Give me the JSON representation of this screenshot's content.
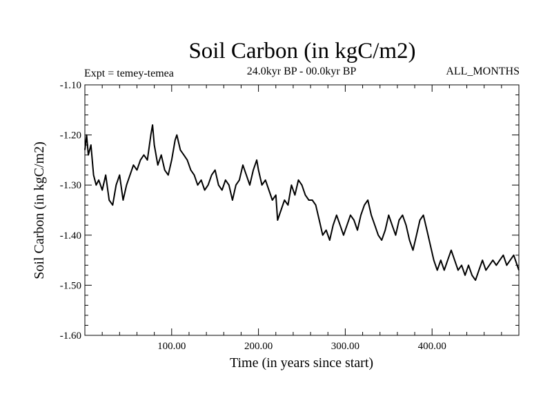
{
  "chart_data": {
    "type": "line",
    "title": "Soil Carbon (in kgC/m2)",
    "subtitle": "24.0kyr BP - 00.0kyr BP",
    "experiment": "Expt = temey-temea",
    "months": "ALL_MONTHS",
    "xlabel": "Time (in years since start)",
    "ylabel": "Soil Carbon (in kgC/m2)",
    "xlim": [
      0,
      500
    ],
    "ylim": [
      -1.6,
      -1.1
    ],
    "x_ticks": [
      {
        "value": 100,
        "label": "100.00"
      },
      {
        "value": 200,
        "label": "200.00"
      },
      {
        "value": 300,
        "label": "300.00"
      },
      {
        "value": 400,
        "label": "400.00"
      }
    ],
    "y_ticks": [
      {
        "value": -1.1,
        "label": "-1.10"
      },
      {
        "value": -1.2,
        "label": "-1.20"
      },
      {
        "value": -1.3,
        "label": "-1.30"
      },
      {
        "value": -1.4,
        "label": "-1.40"
      },
      {
        "value": -1.5,
        "label": "-1.50"
      },
      {
        "value": -1.6,
        "label": "-1.60"
      }
    ],
    "series": [
      {
        "name": "Soil Carbon",
        "color": "#000000",
        "x": [
          0,
          2,
          4,
          7,
          10,
          13,
          16,
          20,
          24,
          28,
          32,
          36,
          40,
          44,
          48,
          52,
          56,
          60,
          64,
          68,
          72,
          76,
          78,
          80,
          84,
          88,
          92,
          96,
          100,
          104,
          106,
          110,
          114,
          118,
          122,
          126,
          130,
          134,
          138,
          142,
          146,
          150,
          154,
          158,
          162,
          166,
          170,
          174,
          178,
          182,
          186,
          190,
          194,
          198,
          200,
          204,
          208,
          212,
          216,
          220,
          222,
          226,
          230,
          234,
          238,
          242,
          246,
          250,
          254,
          258,
          262,
          266,
          270,
          274,
          278,
          282,
          286,
          290,
          294,
          298,
          302,
          306,
          310,
          314,
          318,
          322,
          326,
          330,
          334,
          338,
          342,
          346,
          350,
          354,
          358,
          362,
          366,
          370,
          374,
          378,
          382,
          386,
          390,
          394,
          398,
          402,
          406,
          410,
          414,
          418,
          422,
          426,
          430,
          434,
          438,
          442,
          446,
          450,
          454,
          458,
          462,
          466,
          470,
          474,
          478,
          482,
          486,
          490,
          494,
          498,
          500
        ],
        "y": [
          -1.23,
          -1.2,
          -1.24,
          -1.22,
          -1.28,
          -1.3,
          -1.29,
          -1.31,
          -1.28,
          -1.33,
          -1.34,
          -1.3,
          -1.28,
          -1.33,
          -1.3,
          -1.28,
          -1.26,
          -1.27,
          -1.25,
          -1.24,
          -1.25,
          -1.2,
          -1.18,
          -1.22,
          -1.26,
          -1.24,
          -1.27,
          -1.28,
          -1.25,
          -1.21,
          -1.2,
          -1.23,
          -1.24,
          -1.25,
          -1.27,
          -1.28,
          -1.3,
          -1.29,
          -1.31,
          -1.3,
          -1.28,
          -1.27,
          -1.3,
          -1.31,
          -1.29,
          -1.3,
          -1.33,
          -1.3,
          -1.29,
          -1.26,
          -1.28,
          -1.3,
          -1.27,
          -1.25,
          -1.27,
          -1.3,
          -1.29,
          -1.31,
          -1.33,
          -1.32,
          -1.37,
          -1.35,
          -1.33,
          -1.34,
          -1.3,
          -1.32,
          -1.29,
          -1.3,
          -1.32,
          -1.33,
          -1.33,
          -1.34,
          -1.37,
          -1.4,
          -1.39,
          -1.41,
          -1.38,
          -1.36,
          -1.38,
          -1.4,
          -1.38,
          -1.36,
          -1.37,
          -1.39,
          -1.36,
          -1.34,
          -1.33,
          -1.36,
          -1.38,
          -1.4,
          -1.41,
          -1.39,
          -1.36,
          -1.38,
          -1.4,
          -1.37,
          -1.36,
          -1.38,
          -1.41,
          -1.43,
          -1.4,
          -1.37,
          -1.36,
          -1.39,
          -1.42,
          -1.45,
          -1.47,
          -1.45,
          -1.47,
          -1.45,
          -1.43,
          -1.45,
          -1.47,
          -1.46,
          -1.48,
          -1.46,
          -1.48,
          -1.49,
          -1.47,
          -1.45,
          -1.47,
          -1.46,
          -1.45,
          -1.46,
          -1.45,
          -1.44,
          -1.46,
          -1.45,
          -1.44,
          -1.46,
          -1.47
        ]
      }
    ]
  }
}
